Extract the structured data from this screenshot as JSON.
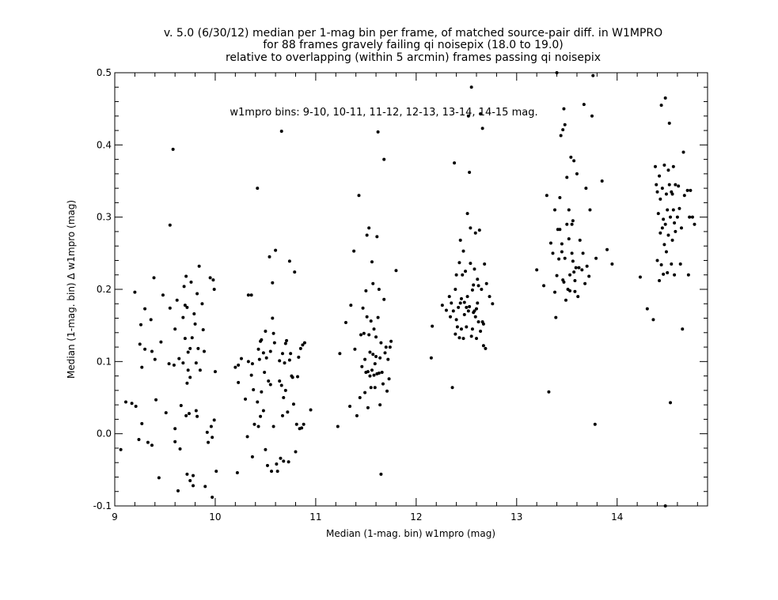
{
  "chart_data": {
    "type": "scatter",
    "title": [
      "v. 5.0 (6/30/12) median per 1-mag bin per frame, of matched source-pair diff. in W1MPRO",
      "for 88 frames gravely failing qi noisepix (18.0 to 19.0)",
      "relative to overlapping (within 5 arcmin) frames passing qi noisepix"
    ],
    "xlabel": "Median (1-mag. bin) w1mpro (mag)",
    "ylabel": "Median (1-mag. bin) Δ w1mpro (mag)",
    "annotation": "w1mpro bins: 9-10, 10-11, 11-12, 12-13, 13-14, 14-15 mag.",
    "xlim": [
      9,
      14.9
    ],
    "ylim": [
      -0.1,
      0.5
    ],
    "xticks": [
      9,
      10,
      11,
      12,
      13,
      14
    ],
    "yticks": [
      -0.1,
      0.0,
      0.1,
      0.2,
      0.3,
      0.4,
      0.5
    ],
    "ytick_labels": [
      "-0.1",
      "0.0",
      "0.1",
      "0.2",
      "0.3",
      "0.4",
      "0.5"
    ],
    "grid": false,
    "marker": "filled-circle",
    "color": "#000000",
    "points": [
      [
        9.06,
        -0.022
      ],
      [
        9.11,
        0.044
      ],
      [
        9.17,
        0.042
      ],
      [
        9.2,
        0.196
      ],
      [
        9.21,
        0.038
      ],
      [
        9.24,
        -0.008
      ],
      [
        9.25,
        0.124
      ],
      [
        9.26,
        0.151
      ],
      [
        9.27,
        0.092
      ],
      [
        9.27,
        0.014
      ],
      [
        9.3,
        0.173
      ],
      [
        9.3,
        0.117
      ],
      [
        9.33,
        -0.012
      ],
      [
        9.36,
        0.158
      ],
      [
        9.37,
        0.114
      ],
      [
        9.37,
        -0.016
      ],
      [
        9.39,
        0.216
      ],
      [
        9.4,
        0.103
      ],
      [
        9.41,
        0.047
      ],
      [
        9.44,
        -0.061
      ],
      [
        9.46,
        0.127
      ],
      [
        9.48,
        0.192
      ],
      [
        9.51,
        0.029
      ],
      [
        9.54,
        0.097
      ],
      [
        9.55,
        0.289
      ],
      [
        9.55,
        0.174
      ],
      [
        9.58,
        0.394
      ],
      [
        9.59,
        0.095
      ],
      [
        9.6,
        0.145
      ],
      [
        9.6,
        0.007
      ],
      [
        9.6,
        -0.011
      ],
      [
        9.62,
        0.185
      ],
      [
        9.63,
        -0.079
      ],
      [
        9.64,
        0.104
      ],
      [
        9.65,
        -0.021
      ],
      [
        9.66,
        0.039
      ],
      [
        9.68,
        0.161
      ],
      [
        9.68,
        0.098
      ],
      [
        9.69,
        0.204
      ],
      [
        9.7,
        0.178
      ],
      [
        9.7,
        0.132
      ],
      [
        9.71,
        0.218
      ],
      [
        9.71,
        0.025
      ],
      [
        9.72,
        0.175
      ],
      [
        9.72,
        0.07
      ],
      [
        9.72,
        -0.056
      ],
      [
        9.73,
        0.088
      ],
      [
        9.73,
        0.113
      ],
      [
        9.74,
        0.028
      ],
      [
        9.75,
        0.118
      ],
      [
        9.75,
        0.078
      ],
      [
        9.75,
        -0.065
      ],
      [
        9.76,
        0.21
      ],
      [
        9.77,
        0.133
      ],
      [
        9.78,
        -0.072
      ],
      [
        9.78,
        -0.058
      ],
      [
        9.79,
        0.166
      ],
      [
        9.8,
        0.152
      ],
      [
        9.81,
        0.098
      ],
      [
        9.81,
        0.032
      ],
      [
        9.82,
        0.194
      ],
      [
        9.82,
        0.024
      ],
      [
        9.83,
        0.118
      ],
      [
        9.84,
        0.232
      ],
      [
        9.85,
        0.088
      ],
      [
        9.87,
        0.18
      ],
      [
        9.88,
        0.144
      ],
      [
        9.89,
        0.114
      ],
      [
        9.9,
        -0.073
      ],
      [
        9.92,
        0.002
      ],
      [
        9.93,
        -0.012
      ],
      [
        9.95,
        0.216
      ],
      [
        9.96,
        0.01
      ],
      [
        9.97,
        -0.005
      ],
      [
        9.97,
        -0.088
      ],
      [
        9.98,
        0.213
      ],
      [
        9.99,
        0.019
      ],
      [
        9.99,
        0.2
      ],
      [
        10.0,
        0.086
      ],
      [
        10.01,
        -0.052
      ],
      [
        10.2,
        0.092
      ],
      [
        10.22,
        -0.054
      ],
      [
        10.23,
        0.095
      ],
      [
        10.23,
        0.071
      ],
      [
        10.26,
        0.104
      ],
      [
        10.3,
        0.048
      ],
      [
        10.32,
        -0.004
      ],
      [
        10.33,
        0.192
      ],
      [
        10.33,
        0.1
      ],
      [
        10.36,
        0.192
      ],
      [
        10.36,
        0.081
      ],
      [
        10.37,
        0.097
      ],
      [
        10.37,
        -0.032
      ],
      [
        10.38,
        0.061
      ],
      [
        10.39,
        0.013
      ],
      [
        10.42,
        0.044
      ],
      [
        10.42,
        0.34
      ],
      [
        10.43,
        0.01
      ],
      [
        10.43,
        0.117
      ],
      [
        10.44,
        0.103
      ],
      [
        10.45,
        0.128
      ],
      [
        10.45,
        0.024
      ],
      [
        10.46,
        0.058
      ],
      [
        10.46,
        0.13
      ],
      [
        10.48,
        0.112
      ],
      [
        10.48,
        0.032
      ],
      [
        10.49,
        0.085
      ],
      [
        10.5,
        0.142
      ],
      [
        10.5,
        -0.022
      ],
      [
        10.51,
        0.105
      ],
      [
        10.52,
        -0.044
      ],
      [
        10.53,
        0.073
      ],
      [
        10.54,
        0.245
      ],
      [
        10.55,
        0.114
      ],
      [
        10.55,
        0.068
      ],
      [
        10.56,
        -0.052
      ],
      [
        10.57,
        0.16
      ],
      [
        10.57,
        0.209
      ],
      [
        10.58,
        0.139
      ],
      [
        10.58,
        0.01
      ],
      [
        10.59,
        0.126
      ],
      [
        10.6,
        0.254
      ],
      [
        10.61,
        -0.042
      ],
      [
        10.62,
        -0.052
      ],
      [
        10.64,
        0.101
      ],
      [
        10.64,
        0.073
      ],
      [
        10.65,
        -0.034
      ],
      [
        10.66,
        0.067
      ],
      [
        10.66,
        0.419
      ],
      [
        10.67,
        0.111
      ],
      [
        10.67,
        0.025
      ],
      [
        10.68,
        0.05
      ],
      [
        10.68,
        -0.038
      ],
      [
        10.69,
        0.098
      ],
      [
        10.7,
        0.125
      ],
      [
        10.7,
        0.06
      ],
      [
        10.71,
        0.129
      ],
      [
        10.72,
        0.03
      ],
      [
        10.73,
        -0.039
      ],
      [
        10.74,
        0.102
      ],
      [
        10.74,
        0.239
      ],
      [
        10.75,
        0.111
      ],
      [
        10.76,
        0.08
      ],
      [
        10.77,
        0.078
      ],
      [
        10.78,
        0.041
      ],
      [
        10.79,
        0.224
      ],
      [
        10.8,
        -0.025
      ],
      [
        10.81,
        0.013
      ],
      [
        10.82,
        0.079
      ],
      [
        10.83,
        0.106
      ],
      [
        10.84,
        0.007
      ],
      [
        10.85,
        0.118
      ],
      [
        10.86,
        0.008
      ],
      [
        10.87,
        0.123
      ],
      [
        10.88,
        0.013
      ],
      [
        10.89,
        0.126
      ],
      [
        10.95,
        0.033
      ],
      [
        11.22,
        0.01
      ],
      [
        11.24,
        0.111
      ],
      [
        11.3,
        0.154
      ],
      [
        11.34,
        0.038
      ],
      [
        11.35,
        0.178
      ],
      [
        11.38,
        0.253
      ],
      [
        11.39,
        0.117
      ],
      [
        11.41,
        0.025
      ],
      [
        11.43,
        0.33
      ],
      [
        11.44,
        0.05
      ],
      [
        11.45,
        0.137
      ],
      [
        11.46,
        0.093
      ],
      [
        11.47,
        0.174
      ],
      [
        11.48,
        0.139
      ],
      [
        11.49,
        0.103
      ],
      [
        11.49,
        0.057
      ],
      [
        11.5,
        0.085
      ],
      [
        11.5,
        0.198
      ],
      [
        11.51,
        0.162
      ],
      [
        11.51,
        0.275
      ],
      [
        11.52,
        0.086
      ],
      [
        11.52,
        0.036
      ],
      [
        11.53,
        0.137
      ],
      [
        11.53,
        0.285
      ],
      [
        11.54,
        0.113
      ],
      [
        11.54,
        0.08
      ],
      [
        11.55,
        0.064
      ],
      [
        11.55,
        0.156
      ],
      [
        11.56,
        0.238
      ],
      [
        11.56,
        0.088
      ],
      [
        11.57,
        0.208
      ],
      [
        11.57,
        0.11
      ],
      [
        11.58,
        0.081
      ],
      [
        11.58,
        0.145
      ],
      [
        11.59,
        0.097
      ],
      [
        11.59,
        0.064
      ],
      [
        11.6,
        0.134
      ],
      [
        11.6,
        0.107
      ],
      [
        11.61,
        0.083
      ],
      [
        11.61,
        0.273
      ],
      [
        11.62,
        0.418
      ],
      [
        11.62,
        0.161
      ],
      [
        11.63,
        0.084
      ],
      [
        11.63,
        0.2
      ],
      [
        11.64,
        0.105
      ],
      [
        11.64,
        0.04
      ],
      [
        11.65,
        0.126
      ],
      [
        11.65,
        -0.056
      ],
      [
        11.66,
        0.085
      ],
      [
        11.67,
        0.069
      ],
      [
        11.68,
        0.38
      ],
      [
        11.68,
        0.186
      ],
      [
        11.69,
        0.112
      ],
      [
        11.7,
        0.12
      ],
      [
        11.71,
        0.059
      ],
      [
        11.72,
        0.103
      ],
      [
        11.73,
        0.076
      ],
      [
        11.74,
        0.12
      ],
      [
        11.75,
        0.128
      ],
      [
        11.8,
        0.226
      ],
      [
        12.15,
        0.105
      ],
      [
        12.16,
        0.149
      ],
      [
        12.26,
        0.178
      ],
      [
        12.3,
        0.171
      ],
      [
        12.33,
        0.19
      ],
      [
        12.34,
        0.162
      ],
      [
        12.35,
        0.181
      ],
      [
        12.36,
        0.064
      ],
      [
        12.37,
        0.17
      ],
      [
        12.38,
        0.375
      ],
      [
        12.39,
        0.138
      ],
      [
        12.39,
        0.2
      ],
      [
        12.4,
        0.158
      ],
      [
        12.4,
        0.22
      ],
      [
        12.41,
        0.148
      ],
      [
        12.42,
        0.175
      ],
      [
        12.43,
        0.237
      ],
      [
        12.43,
        0.133
      ],
      [
        12.44,
        0.181
      ],
      [
        12.44,
        0.268
      ],
      [
        12.45,
        0.187
      ],
      [
        12.45,
        0.145
      ],
      [
        12.46,
        0.22
      ],
      [
        12.47,
        0.253
      ],
      [
        12.47,
        0.132
      ],
      [
        12.48,
        0.182
      ],
      [
        12.48,
        0.165
      ],
      [
        12.49,
        0.225
      ],
      [
        12.5,
        0.148
      ],
      [
        12.5,
        0.175
      ],
      [
        12.51,
        0.19
      ],
      [
        12.51,
        0.305
      ],
      [
        12.52,
        0.17
      ],
      [
        12.52,
        0.44
      ],
      [
        12.53,
        0.362
      ],
      [
        12.53,
        0.176
      ],
      [
        12.54,
        0.236
      ],
      [
        12.54,
        0.285
      ],
      [
        12.55,
        0.48
      ],
      [
        12.55,
        0.135
      ],
      [
        12.56,
        0.199
      ],
      [
        12.56,
        0.145
      ],
      [
        12.57,
        0.206
      ],
      [
        12.57,
        0.168
      ],
      [
        12.58,
        0.17
      ],
      [
        12.58,
        0.228
      ],
      [
        12.59,
        0.278
      ],
      [
        12.59,
        0.162
      ],
      [
        12.6,
        0.173
      ],
      [
        12.6,
        0.132
      ],
      [
        12.61,
        0.214
      ],
      [
        12.61,
        0.181
      ],
      [
        12.62,
        0.205
      ],
      [
        12.62,
        0.155
      ],
      [
        12.63,
        0.282
      ],
      [
        12.64,
        0.443
      ],
      [
        12.64,
        0.142
      ],
      [
        12.65,
        0.2
      ],
      [
        12.66,
        0.423
      ],
      [
        12.66,
        0.155
      ],
      [
        12.67,
        0.122
      ],
      [
        12.67,
        0.152
      ],
      [
        12.68,
        0.235
      ],
      [
        12.69,
        0.118
      ],
      [
        12.7,
        0.208
      ],
      [
        12.73,
        0.19
      ],
      [
        12.76,
        0.18
      ],
      [
        13.2,
        0.227
      ],
      [
        13.27,
        0.205
      ],
      [
        13.3,
        0.33
      ],
      [
        13.32,
        0.058
      ],
      [
        13.34,
        0.264
      ],
      [
        13.36,
        0.25
      ],
      [
        13.38,
        0.196
      ],
      [
        13.38,
        0.31
      ],
      [
        13.39,
        0.161
      ],
      [
        13.4,
        0.219
      ],
      [
        13.41,
        0.283
      ],
      [
        13.42,
        0.242
      ],
      [
        13.43,
        0.283
      ],
      [
        13.43,
        0.327
      ],
      [
        13.44,
        0.413
      ],
      [
        13.45,
        0.263
      ],
      [
        13.45,
        0.252
      ],
      [
        13.46,
        0.421
      ],
      [
        13.46,
        0.213
      ],
      [
        13.47,
        0.21
      ],
      [
        13.48,
        0.428
      ],
      [
        13.48,
        0.243
      ],
      [
        13.49,
        0.185
      ],
      [
        13.5,
        0.29
      ],
      [
        13.5,
        0.355
      ],
      [
        13.51,
        0.2
      ],
      [
        13.52,
        0.27
      ],
      [
        13.52,
        0.31
      ],
      [
        13.53,
        0.22
      ],
      [
        13.53,
        0.198
      ],
      [
        13.54,
        0.383
      ],
      [
        13.55,
        0.25
      ],
      [
        13.55,
        0.29
      ],
      [
        13.56,
        0.239
      ],
      [
        13.56,
        0.295
      ],
      [
        13.57,
        0.378
      ],
      [
        13.57,
        0.224
      ],
      [
        13.58,
        0.212
      ],
      [
        13.58,
        0.197
      ],
      [
        13.59,
        0.23
      ],
      [
        13.6,
        0.36
      ],
      [
        13.61,
        0.19
      ],
      [
        13.62,
        0.23
      ],
      [
        13.63,
        0.268
      ],
      [
        13.65,
        0.227
      ],
      [
        13.66,
        0.25
      ],
      [
        13.67,
        0.456
      ],
      [
        13.68,
        0.208
      ],
      [
        13.69,
        0.34
      ],
      [
        13.7,
        0.232
      ],
      [
        13.72,
        0.218
      ],
      [
        13.73,
        0.31
      ],
      [
        13.75,
        0.44
      ],
      [
        13.76,
        0.496
      ],
      [
        13.78,
        0.013
      ],
      [
        13.79,
        0.243
      ],
      [
        13.85,
        0.35
      ],
      [
        13.9,
        0.255
      ],
      [
        13.95,
        0.235
      ],
      [
        13.4,
        0.5
      ],
      [
        13.47,
        0.45
      ],
      [
        14.23,
        0.217
      ],
      [
        14.3,
        0.173
      ],
      [
        14.36,
        0.158
      ],
      [
        14.38,
        0.37
      ],
      [
        14.39,
        0.345
      ],
      [
        14.4,
        0.24
      ],
      [
        14.4,
        0.335
      ],
      [
        14.41,
        0.305
      ],
      [
        14.42,
        0.212
      ],
      [
        14.42,
        0.357
      ],
      [
        14.43,
        0.278
      ],
      [
        14.43,
        0.325
      ],
      [
        14.44,
        0.455
      ],
      [
        14.44,
        0.234
      ],
      [
        14.45,
        0.285
      ],
      [
        14.45,
        0.34
      ],
      [
        14.46,
        0.297
      ],
      [
        14.46,
        0.221
      ],
      [
        14.47,
        0.372
      ],
      [
        14.47,
        0.262
      ],
      [
        14.48,
        0.465
      ],
      [
        14.48,
        0.29
      ],
      [
        14.49,
        0.252
      ],
      [
        14.49,
        0.332
      ],
      [
        14.5,
        0.31
      ],
      [
        14.5,
        0.223
      ],
      [
        14.51,
        0.365
      ],
      [
        14.51,
        0.275
      ],
      [
        14.52,
        0.345
      ],
      [
        14.52,
        0.43
      ],
      [
        14.53,
        0.3
      ],
      [
        14.53,
        0.043
      ],
      [
        14.54,
        0.235
      ],
      [
        14.54,
        0.335
      ],
      [
        14.55,
        0.332
      ],
      [
        14.55,
        0.268
      ],
      [
        14.56,
        0.31
      ],
      [
        14.56,
        0.37
      ],
      [
        14.57,
        0.292
      ],
      [
        14.57,
        0.22
      ],
      [
        14.58,
        0.28
      ],
      [
        14.58,
        0.345
      ],
      [
        14.6,
        0.3
      ],
      [
        14.61,
        0.343
      ],
      [
        14.62,
        0.312
      ],
      [
        14.63,
        0.235
      ],
      [
        14.64,
        0.285
      ],
      [
        14.65,
        0.145
      ],
      [
        14.66,
        0.39
      ],
      [
        14.67,
        0.33
      ],
      [
        14.7,
        0.337
      ],
      [
        14.71,
        0.22
      ],
      [
        14.72,
        0.3
      ],
      [
        14.73,
        0.337
      ],
      [
        14.75,
        0.3
      ],
      [
        14.77,
        0.29
      ],
      [
        14.48,
        -0.1
      ]
    ]
  }
}
